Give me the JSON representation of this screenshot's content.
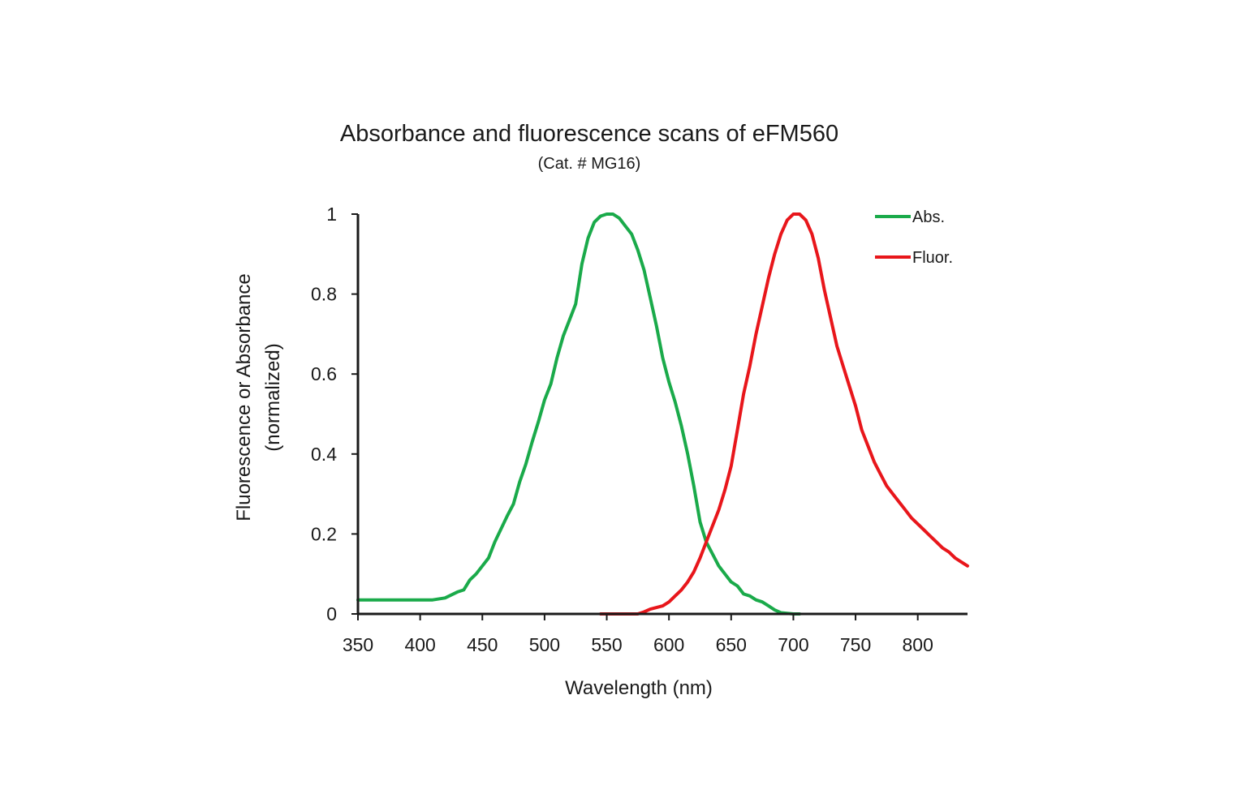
{
  "chart_data": {
    "type": "line",
    "title": "Absorbance and fluorescence scans of eFM560",
    "subtitle": "(Cat. # MG16)",
    "xlabel": "Wavelength (nm)",
    "ylabel_line1": "Fluorescence or Absorbance",
    "ylabel_line2": "(normalized)",
    "xlim": [
      350,
      840
    ],
    "ylim": [
      0,
      1
    ],
    "x_ticks": [
      350,
      400,
      450,
      500,
      550,
      600,
      650,
      700,
      750,
      800
    ],
    "x_tick_labels": [
      "350",
      "400",
      "450",
      "500",
      "550",
      "600",
      "650",
      "700",
      "750",
      "800"
    ],
    "y_ticks": [
      0,
      0.2,
      0.4,
      0.6,
      0.8,
      1
    ],
    "y_tick_labels": [
      "0",
      "0.2",
      "0.4",
      "0.6",
      "0.8",
      "1"
    ],
    "grid": false,
    "legend_position": "top-right",
    "series": [
      {
        "name": "Abs.",
        "color": "#1aaa4a",
        "x": [
          350,
          380,
          410,
          420,
          430,
          435,
          440,
          445,
          450,
          455,
          460,
          470,
          475,
          480,
          485,
          490,
          495,
          500,
          505,
          510,
          515,
          520,
          525,
          530,
          535,
          540,
          545,
          550,
          555,
          560,
          565,
          570,
          575,
          580,
          585,
          590,
          595,
          600,
          605,
          610,
          615,
          620,
          625,
          630,
          635,
          640,
          645,
          650,
          655,
          660,
          665,
          670,
          675,
          680,
          685,
          690,
          700,
          705
        ],
        "y": [
          0.035,
          0.035,
          0.035,
          0.04,
          0.055,
          0.06,
          0.085,
          0.1,
          0.12,
          0.14,
          0.18,
          0.245,
          0.275,
          0.33,
          0.375,
          0.43,
          0.48,
          0.535,
          0.575,
          0.64,
          0.695,
          0.735,
          0.775,
          0.875,
          0.94,
          0.98,
          0.995,
          1.0,
          1.0,
          0.99,
          0.97,
          0.95,
          0.91,
          0.86,
          0.79,
          0.72,
          0.64,
          0.58,
          0.53,
          0.47,
          0.4,
          0.32,
          0.23,
          0.18,
          0.15,
          0.12,
          0.1,
          0.08,
          0.07,
          0.05,
          0.045,
          0.035,
          0.03,
          0.02,
          0.01,
          0.003,
          0.0,
          0.0
        ]
      },
      {
        "name": "Fluor.",
        "color": "#e8161b",
        "x": [
          545,
          560,
          575,
          580,
          585,
          595,
          600,
          605,
          610,
          615,
          620,
          625,
          630,
          635,
          640,
          645,
          650,
          655,
          660,
          665,
          670,
          675,
          680,
          685,
          690,
          695,
          700,
          705,
          710,
          715,
          720,
          725,
          730,
          735,
          740,
          745,
          750,
          755,
          760,
          765,
          770,
          775,
          780,
          785,
          790,
          795,
          800,
          805,
          810,
          815,
          820,
          825,
          830,
          835,
          840
        ],
        "y": [
          0.0,
          0.0,
          0.0,
          0.005,
          0.012,
          0.02,
          0.03,
          0.045,
          0.06,
          0.08,
          0.105,
          0.14,
          0.18,
          0.22,
          0.26,
          0.31,
          0.37,
          0.46,
          0.55,
          0.62,
          0.7,
          0.77,
          0.84,
          0.9,
          0.95,
          0.985,
          1.0,
          1.0,
          0.985,
          0.95,
          0.89,
          0.81,
          0.74,
          0.67,
          0.62,
          0.57,
          0.52,
          0.46,
          0.42,
          0.38,
          0.35,
          0.32,
          0.3,
          0.28,
          0.26,
          0.24,
          0.225,
          0.21,
          0.195,
          0.18,
          0.165,
          0.155,
          0.14,
          0.13,
          0.12
        ]
      }
    ]
  }
}
